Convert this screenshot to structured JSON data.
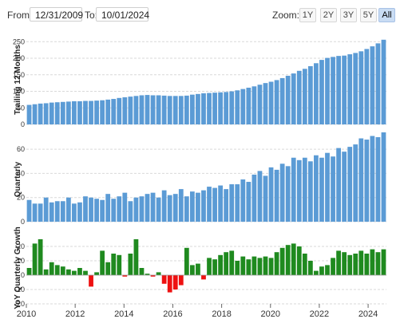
{
  "controls": {
    "from_label": "From:",
    "from_value": "12/31/2009",
    "to_label": "To:",
    "to_value": "10/01/2024",
    "zoom_label": "Zoom:",
    "zoom_options": [
      "1Y",
      "2Y",
      "3Y",
      "5Y",
      "All"
    ],
    "zoom_selected": "All"
  },
  "colors": {
    "bar_blue": "#5b9bd5",
    "bar_green": "#1f8a1f",
    "bar_red": "#ee1111",
    "grid": "#d9d9d9"
  },
  "chart_data": [
    {
      "type": "bar",
      "ylabel": "Trailing 12 Months",
      "ylim": [
        0,
        270
      ],
      "yticks": [
        0,
        50,
        100,
        150,
        200,
        250
      ],
      "grid": true,
      "values": [
        59,
        61,
        63,
        64,
        66,
        67,
        68,
        69,
        70,
        70,
        71,
        71,
        72,
        73,
        75,
        77,
        80,
        82,
        84,
        86,
        88,
        89,
        88,
        88,
        87,
        86,
        86,
        86,
        87,
        90,
        92,
        94,
        95,
        96,
        97,
        98,
        100,
        103,
        107,
        111,
        115,
        120,
        125,
        129,
        134,
        140,
        147,
        154,
        162,
        168,
        176,
        185,
        195,
        201,
        204,
        207,
        208,
        212,
        216,
        221,
        228,
        236,
        245,
        256
      ],
      "xticks": [
        "2010",
        "2012",
        "2014",
        "2016",
        "2018",
        "2020",
        "2022",
        "2024"
      ]
    },
    {
      "type": "bar",
      "ylabel": "Quarterly",
      "ylim": [
        0,
        70
      ],
      "yticks": [
        0,
        20,
        40,
        60
      ],
      "grid": true,
      "values": [
        18,
        15,
        15,
        20,
        16,
        17,
        17,
        20,
        15,
        16,
        21,
        20,
        19,
        18,
        23,
        19,
        21,
        24,
        17,
        20,
        21,
        23,
        24,
        20,
        26,
        22,
        23,
        27,
        21,
        25,
        24,
        26,
        29,
        28,
        30,
        27,
        31,
        31,
        35,
        33,
        39,
        42,
        38,
        45,
        43,
        48,
        46,
        53,
        51,
        53,
        50,
        55,
        53,
        57,
        54,
        61,
        58,
        62,
        64,
        69,
        68,
        71,
        70,
        74
      ],
      "xticks": [
        "2010",
        "2012",
        "2014",
        "2016",
        "2018",
        "2020",
        "2022",
        "2024"
      ]
    },
    {
      "type": "bar",
      "ylabel": "YoY Quarterly Growth",
      "ylim": [
        -20,
        30
      ],
      "yticks": [
        -20,
        -10,
        0,
        10,
        20
      ],
      "grid": true,
      "values": [
        5,
        22,
        25,
        4,
        9,
        7,
        6,
        4,
        3,
        5,
        3,
        -8,
        2,
        17,
        9,
        15,
        14,
        -1,
        15,
        25,
        5,
        1,
        -1,
        2,
        -6,
        -12,
        -10,
        -7,
        19,
        7,
        8,
        -3,
        12,
        11,
        14,
        16,
        17,
        10,
        13,
        11,
        13,
        12,
        13,
        12,
        16,
        19,
        21,
        22,
        20,
        15,
        10,
        3,
        6,
        7,
        12,
        17,
        16,
        14,
        15,
        17,
        15,
        18,
        16,
        18
      ],
      "xticks": [
        "2010",
        "2012",
        "2014",
        "2016",
        "2018",
        "2020",
        "2022",
        "2024"
      ]
    }
  ]
}
